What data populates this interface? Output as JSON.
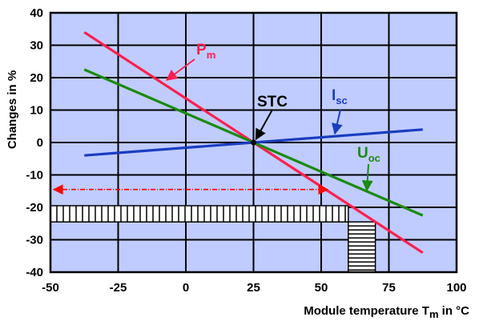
{
  "chart_data": {
    "type": "line",
    "xlabel": "Module temperature T",
    "xlabel_sub": "m",
    "xlabel_tail": " in °C",
    "ylabel": "Changes in %",
    "xlim": [
      -50,
      100
    ],
    "ylim": [
      -40,
      40
    ],
    "x_ticks": [
      -50,
      -25,
      0,
      25,
      50,
      75,
      100
    ],
    "y_ticks": [
      40,
      30,
      20,
      10,
      0,
      -10,
      -20,
      -30,
      -40
    ],
    "grid": true,
    "background": "#c0ccff",
    "series": [
      {
        "name": "P",
        "name_sub": "m",
        "color": "#ff1f4f",
        "x": [
          -37.5,
          87.5
        ],
        "y": [
          34,
          -34
        ]
      },
      {
        "name": "U",
        "name_sub": "oc",
        "color": "#1a8a10",
        "x": [
          -37.5,
          87.5
        ],
        "y": [
          22.5,
          -22.5
        ]
      },
      {
        "name": "I",
        "name_sub": "sc",
        "color": "#1a3dbf",
        "x": [
          -37.5,
          87.5
        ],
        "y": [
          -4,
          4
        ]
      }
    ],
    "annotations": {
      "stc": {
        "label": "STC",
        "x": 25,
        "y": 0,
        "color": "#000000"
      },
      "arrow_range": {
        "x_from": 50,
        "x_to": -50,
        "y": -14.5,
        "color": "#ff0000"
      },
      "hatch_horizontal": {
        "x_from": -50,
        "x_to": 60,
        "y_from": -19.5,
        "y_to": -24.5
      },
      "hatch_vertical": {
        "x_from": 60,
        "x_to": 70,
        "y_from": -24.5,
        "y_to": -40
      }
    }
  }
}
